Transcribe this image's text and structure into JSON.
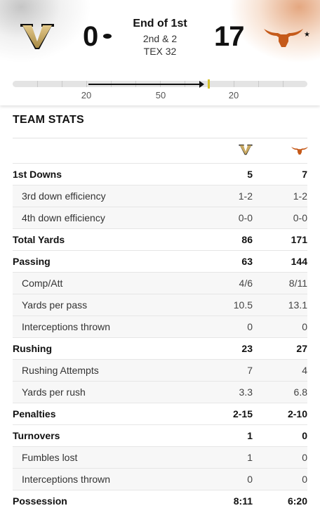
{
  "scoreboard": {
    "away_team": {
      "logo_icon": "vanderbilt-v-logo-icon",
      "score": "0",
      "has_possession": true,
      "color": "#c9a961"
    },
    "home_team": {
      "logo_icon": "texas-longhorn-logo-icon",
      "score": "17",
      "rank_marker": "★",
      "color": "#c55a1a"
    },
    "status": {
      "period": "End of 1st",
      "down_distance": "2nd & 2",
      "ball_spot": "TEX 32"
    }
  },
  "field": {
    "yard_labels": [
      "20",
      "50",
      "20"
    ],
    "first_down_marker_color": "#d6c12a"
  },
  "team_stats": {
    "title": "TEAM STATS",
    "columns": [
      {
        "team": "away",
        "logo_icon": "vanderbilt-v-logo-icon"
      },
      {
        "team": "home",
        "logo_icon": "texas-longhorn-logo-icon"
      }
    ],
    "rows": [
      {
        "label": "1st Downs",
        "away": "5",
        "home": "7",
        "type": "main"
      },
      {
        "label": "3rd down efficiency",
        "away": "1-2",
        "home": "1-2",
        "type": "sub"
      },
      {
        "label": "4th down efficiency",
        "away": "0-0",
        "home": "0-0",
        "type": "sub"
      },
      {
        "label": "Total Yards",
        "away": "86",
        "home": "171",
        "type": "main"
      },
      {
        "label": "Passing",
        "away": "63",
        "home": "144",
        "type": "main"
      },
      {
        "label": "Comp/Att",
        "away": "4/6",
        "home": "8/11",
        "type": "sub"
      },
      {
        "label": "Yards per pass",
        "away": "10.5",
        "home": "13.1",
        "type": "sub"
      },
      {
        "label": "Interceptions thrown",
        "away": "0",
        "home": "0",
        "type": "sub"
      },
      {
        "label": "Rushing",
        "away": "23",
        "home": "27",
        "type": "main"
      },
      {
        "label": "Rushing Attempts",
        "away": "7",
        "home": "4",
        "type": "sub"
      },
      {
        "label": "Yards per rush",
        "away": "3.3",
        "home": "6.8",
        "type": "sub"
      },
      {
        "label": "Penalties",
        "away": "2-15",
        "home": "2-10",
        "type": "main"
      },
      {
        "label": "Turnovers",
        "away": "1",
        "home": "0",
        "type": "main"
      },
      {
        "label": "Fumbles lost",
        "away": "1",
        "home": "0",
        "type": "sub"
      },
      {
        "label": "Interceptions thrown",
        "away": "0",
        "home": "0",
        "type": "sub"
      },
      {
        "label": "Possession",
        "away": "8:11",
        "home": "6:20",
        "type": "main"
      }
    ]
  }
}
